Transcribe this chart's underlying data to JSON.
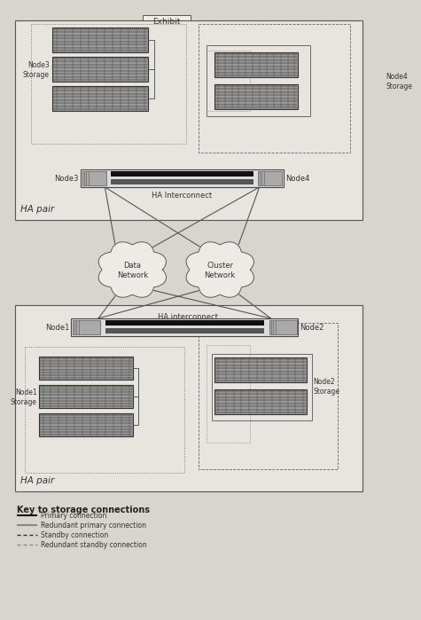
{
  "bg_color": "#d8d4ce",
  "box_facecolor": "#e8e4df",
  "white": "#f0ece6",
  "border_dark": "#444444",
  "border_med": "#666666",
  "storage_face": "#888888",
  "storage_stripe": "#222222",
  "storage_light": "#bbbbbb",
  "node_bar_face": "#cccccc",
  "ha_bar_face": "#111111",
  "title_box": "Exhibit",
  "ha_pair_label": "HA pair",
  "ha_interconnect_top": "HA Interconnect",
  "ha_interconnect_bot": "HA interconnect",
  "data_network_label": "Data\nNetwork",
  "cluster_network_label": "Cluster\nNetwork",
  "node3_label": "Node3",
  "node4_label": "Node4",
  "node3_storage_label": "Node3\nStorage",
  "node4_storage_label": "Node4\nStorage",
  "node1_label": "Node1",
  "node2_label": "Node2",
  "node1_storage_label": "Node1\nStorage",
  "node2_storage_label": "Node2\nStorage",
  "key_title": "Key to storage connections",
  "key_items": [
    "Primary connection",
    "Redundant primary connection",
    "Standby connection",
    "Redundant standby connection"
  ]
}
